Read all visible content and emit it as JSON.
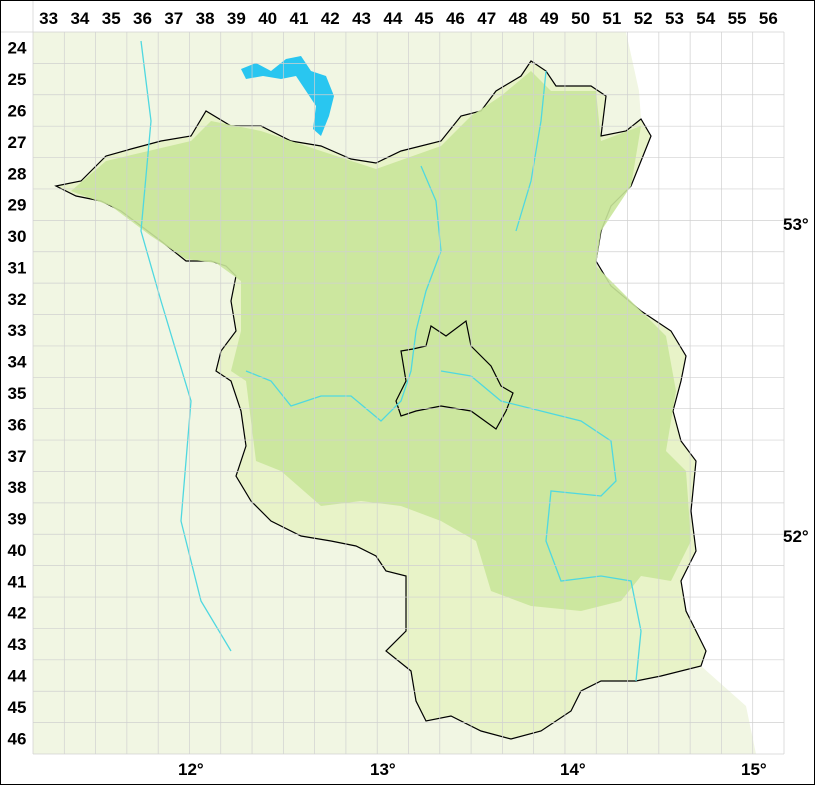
{
  "grid": {
    "columns": [
      "33",
      "34",
      "35",
      "36",
      "37",
      "38",
      "39",
      "40",
      "41",
      "42",
      "43",
      "44",
      "45",
      "46",
      "47",
      "48",
      "49",
      "50",
      "51",
      "52",
      "53",
      "54",
      "55",
      "56"
    ],
    "rows": [
      "24",
      "25",
      "26",
      "27",
      "28",
      "29",
      "30",
      "31",
      "32",
      "33",
      "34",
      "35",
      "36",
      "37",
      "38",
      "39",
      "40",
      "41",
      "42",
      "43",
      "44",
      "45",
      "46"
    ]
  },
  "latitude_labels": [
    "53°",
    "52°"
  ],
  "longitude_labels": [
    "12°",
    "13°",
    "14°",
    "15°"
  ],
  "colors": {
    "background": "#f1f6e3",
    "region_light": "#e8f3c8",
    "region_dark": "#c9e69a",
    "border": "#000000",
    "river": "#4fd8e0",
    "lake": "#29c6f0",
    "grid": "#d0d0d0",
    "outside_white": "#ffffff"
  }
}
